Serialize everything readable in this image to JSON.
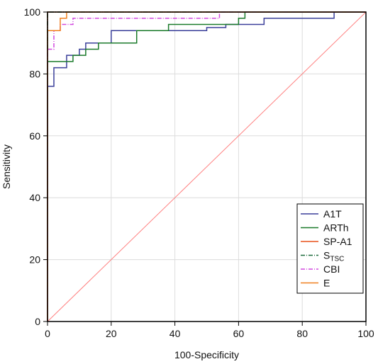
{
  "chart_data": {
    "type": "line",
    "xlabel": "100-Specificity",
    "ylabel": "Sensitivity",
    "xlim": [
      0,
      100
    ],
    "ylim": [
      0,
      100
    ],
    "xticks": [
      0,
      20,
      40,
      60,
      80,
      100
    ],
    "yticks": [
      0,
      20,
      40,
      60,
      80,
      100
    ],
    "grid": true,
    "legend_position": "bottom-right",
    "reference_line": {
      "x": [
        0,
        100
      ],
      "y": [
        0,
        100
      ],
      "color": "#ff8080"
    },
    "series": [
      {
        "name": "A1T",
        "color": "#3a3f9a",
        "dash": "solid",
        "x": [
          0,
          0,
          2,
          2,
          6,
          6,
          10,
          10,
          12,
          12,
          20,
          20,
          50,
          50,
          56,
          56,
          68,
          68,
          90,
          90,
          100
        ],
        "y": [
          0,
          76,
          76,
          82,
          82,
          86,
          86,
          88,
          88,
          90,
          90,
          94,
          94,
          95,
          95,
          96,
          96,
          98,
          98,
          100,
          100
        ]
      },
      {
        "name": "ARTh",
        "color": "#1a7a2a",
        "dash": "solid",
        "x": [
          0,
          0,
          8,
          8,
          12,
          12,
          16,
          16,
          28,
          28,
          38,
          38,
          60,
          60,
          62,
          62,
          100
        ],
        "y": [
          0,
          84,
          84,
          86,
          86,
          88,
          88,
          90,
          90,
          94,
          94,
          96,
          96,
          98,
          98,
          100,
          100
        ]
      },
      {
        "name": "SP-A1",
        "color": "#e8501a",
        "dash": "solid",
        "x": [
          0,
          0,
          100
        ],
        "y": [
          0,
          100,
          100
        ]
      },
      {
        "name": "S",
        "subscript": "TSC",
        "color": "#1a6a3a",
        "dash": "dashdot",
        "x": [
          0,
          0,
          100
        ],
        "y": [
          0,
          100,
          100
        ]
      },
      {
        "name": "CBI",
        "color": "#d24adf",
        "dash": "dashdot",
        "x": [
          0,
          0,
          2,
          2,
          4,
          4,
          8,
          8,
          54,
          54,
          100
        ],
        "y": [
          0,
          88,
          88,
          94,
          94,
          96,
          96,
          98,
          98,
          100,
          100
        ]
      },
      {
        "name": "E",
        "color": "#f08020",
        "dash": "solid",
        "x": [
          0,
          0,
          4,
          4,
          6,
          6,
          100
        ],
        "y": [
          0,
          94,
          94,
          98,
          98,
          100,
          100
        ]
      }
    ]
  }
}
